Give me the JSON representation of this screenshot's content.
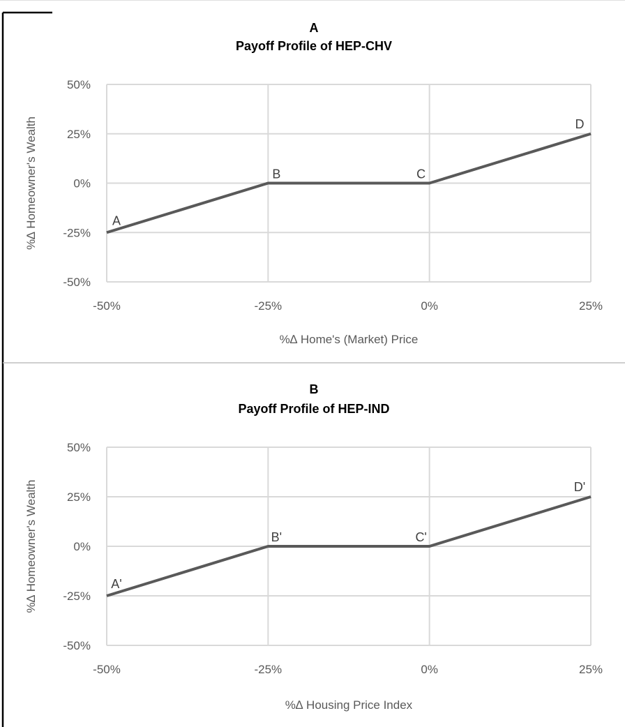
{
  "chart_data": [
    {
      "type": "line",
      "title": "A",
      "subtitle": "Payoff Profile of HEP-CHV",
      "xlabel": "%∆ Home's (Market) Price",
      "ylabel": "%∆ Homeowner's Wealth",
      "xlim": [
        -50,
        25
      ],
      "ylim": [
        -50,
        50
      ],
      "x_ticks": [
        -50,
        -25,
        0,
        25
      ],
      "y_ticks": [
        -50,
        -25,
        0,
        25,
        50
      ],
      "x_tick_labels": [
        "-50%",
        "-25%",
        "0%",
        "25%"
      ],
      "y_tick_labels": [
        "-50%",
        "-25%",
        "0%",
        "25%",
        "50%"
      ],
      "grid": true,
      "legend": "none",
      "series": [
        {
          "x": [
            -50,
            -25,
            0,
            25
          ],
          "y": [
            -25,
            0,
            0,
            25
          ],
          "point_labels": [
            "A",
            "B",
            "C",
            "D"
          ]
        }
      ]
    },
    {
      "type": "line",
      "title": "B",
      "subtitle": "Payoff Profile of HEP-IND",
      "xlabel": "%∆ Housing Price Index",
      "ylabel": "%∆ Homeowner's Wealth",
      "xlim": [
        -50,
        25
      ],
      "ylim": [
        -50,
        50
      ],
      "x_ticks": [
        -50,
        -25,
        0,
        25
      ],
      "y_ticks": [
        -50,
        -25,
        0,
        25,
        50
      ],
      "x_tick_labels": [
        "-50%",
        "-25%",
        "0%",
        "25%"
      ],
      "y_tick_labels": [
        "-50%",
        "-25%",
        "0%",
        "25%",
        "50%"
      ],
      "grid": true,
      "legend": "none",
      "series": [
        {
          "x": [
            -50,
            -25,
            0,
            25
          ],
          "y": [
            -25,
            0,
            0,
            25
          ],
          "point_labels": [
            "A'",
            "B'",
            "C'",
            "D'"
          ]
        }
      ]
    }
  ],
  "colors": {
    "line": "#595959",
    "grid": "#d9d9d9",
    "tick_text": "#595959",
    "point_label_text": "#404040",
    "border": "#000000",
    "divider": "#bfbfbf"
  }
}
